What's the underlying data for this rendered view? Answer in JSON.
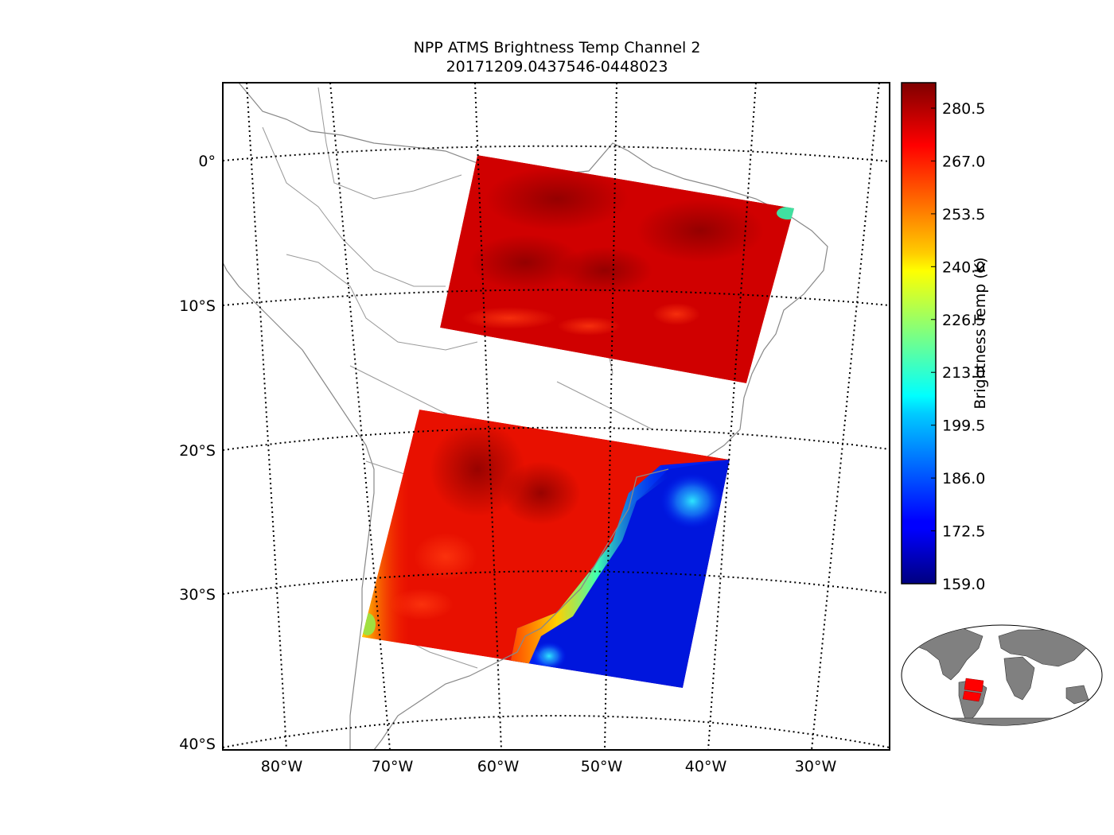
{
  "title": "NPP ATMS Brightness Temp Channel 2",
  "subtitle": "20171209.0437546-0448023",
  "map": {
    "lat_labels": [
      "0°",
      "10°S",
      "20°S",
      "30°S",
      "40°S"
    ],
    "lon_labels": [
      "80°W",
      "70°W",
      "60°W",
      "50°W",
      "40°W",
      "30°W"
    ]
  },
  "colorbar": {
    "label": "Brightness Temp (K)",
    "ticks": [
      "280.5",
      "267.0",
      "253.5",
      "240.0",
      "226.5",
      "213.0",
      "199.5",
      "186.0",
      "172.5",
      "159.0"
    ],
    "min": 159.0,
    "max": 287.0,
    "colormap": "jet"
  },
  "colors": {
    "land_outline": "#888888",
    "inset_land": "#808080",
    "swath": "#ff0000"
  }
}
